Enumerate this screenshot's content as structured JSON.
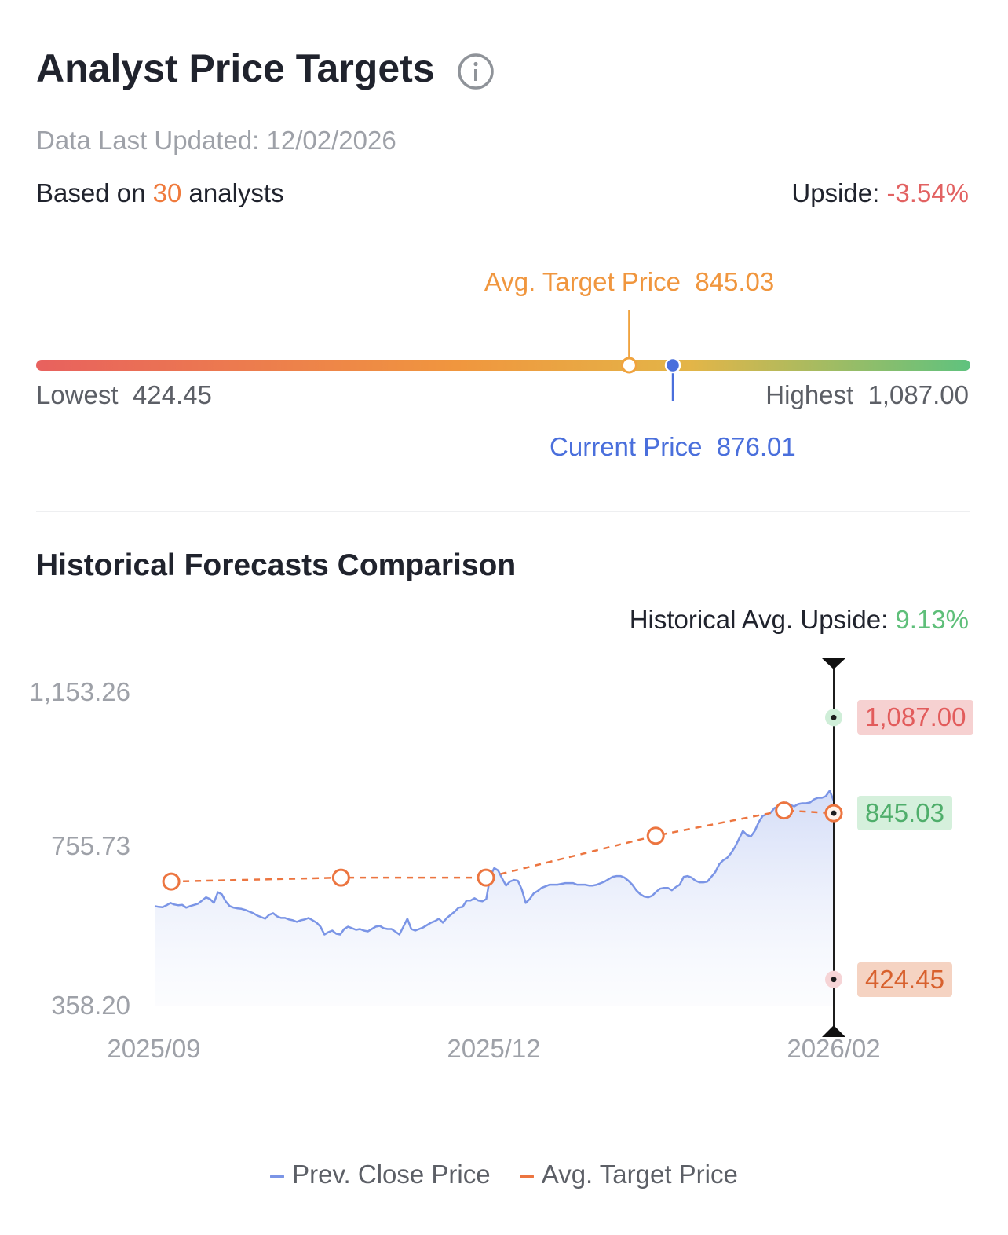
{
  "header": {
    "title": "Analyst Price Targets",
    "updated": "Data Last Updated: 12/02/2026",
    "based_prefix": "Based on ",
    "analyst_count": "30",
    "based_suffix": " analysts",
    "upside_label": "Upside: ",
    "upside_value": "-3.54%"
  },
  "range": {
    "avg_label": "Avg. Target Price",
    "avg_value": "845.03",
    "current_label": "Current Price",
    "current_value": "876.01",
    "lowest_label": "Lowest",
    "lowest_value": "424.45",
    "highest_label": "Highest",
    "highest_value": "1,087.00",
    "low": 424.45,
    "high": 1087.0,
    "avg": 845.03,
    "current": 876.01,
    "colors": {
      "low": "#e8615e",
      "mid": "#f0963e",
      "midhigh": "#e3b548",
      "high": "#5fc27e",
      "avg_marker": "#f0a33e",
      "current_marker": "#4a6fdc"
    }
  },
  "history": {
    "title": "Historical Forecasts Comparison",
    "avg_upside_label": "Historical Avg. Upside: ",
    "avg_upside_value": "9.13%",
    "legend": {
      "close": "Prev. Close Price",
      "target": "Avg. Target Price"
    },
    "badges": {
      "high": "1,087.00",
      "avg": "845.03",
      "low": "424.45"
    }
  },
  "chart_data": {
    "type": "line",
    "yticks": [
      "1,153.26",
      "755.73",
      "358.20"
    ],
    "ylim": [
      358.2,
      1153.26
    ],
    "xticks": [
      "2025/09",
      "2025/12",
      "2026/02"
    ],
    "series": [
      {
        "name": "Prev. Close Price",
        "color": "#7b95e6",
        "values": [
          610,
          608,
          607,
          612,
          618,
          614,
          612,
          613,
          606,
          610,
          613,
          616,
          624,
          632,
          628,
          618,
          645,
          640,
          622,
          610,
          606,
          604,
          603,
          600,
          596,
          592,
          586,
          582,
          578,
          588,
          592,
          584,
          580,
          580,
          576,
          574,
          570,
          574,
          576,
          580,
          574,
          568,
          558,
          538,
          544,
          548,
          540,
          538,
          552,
          558,
          554,
          550,
          552,
          548,
          546,
          552,
          558,
          560,
          554,
          552,
          552,
          545,
          538,
          558,
          578,
          552,
          548,
          552,
          556,
          562,
          568,
          572,
          578,
          568,
          580,
          588,
          596,
          606,
          608,
          624,
          624,
          630,
          624,
          622,
          628,
          686,
          706,
          700,
          680,
          662,
          672,
          676,
          674,
          652,
          618,
          628,
          642,
          648,
          656,
          660,
          664,
          664,
          664,
          666,
          668,
          668,
          668,
          664,
          664,
          664,
          662,
          662,
          664,
          668,
          672,
          678,
          684,
          686,
          686,
          682,
          674,
          664,
          650,
          640,
          634,
          632,
          636,
          646,
          654,
          656,
          656,
          650,
          658,
          664,
          684,
          686,
          682,
          674,
          670,
          670,
          672,
          684,
          696,
          716,
          726,
          732,
          744,
          760,
          780,
          800,
          790,
          786,
          800,
          822,
          838,
          842,
          846,
          858,
          862,
          866,
          872,
          866,
          862,
          868,
          870,
          870,
          872,
          880,
          884,
          884,
          888,
          902,
          876
        ]
      },
      {
        "name": "Avg. Target Price",
        "color": "#ec7540",
        "dates": [
          "2025-09-05",
          "2025-10-16",
          "2025-11-20",
          "2025-12-31",
          "2026-01-31",
          "2026-02-12"
        ],
        "values": [
          672,
          682,
          682,
          788,
          852,
          845.03
        ]
      }
    ],
    "markers": {
      "high": 1087.0,
      "avg": 845.03,
      "low": 424.45
    }
  }
}
